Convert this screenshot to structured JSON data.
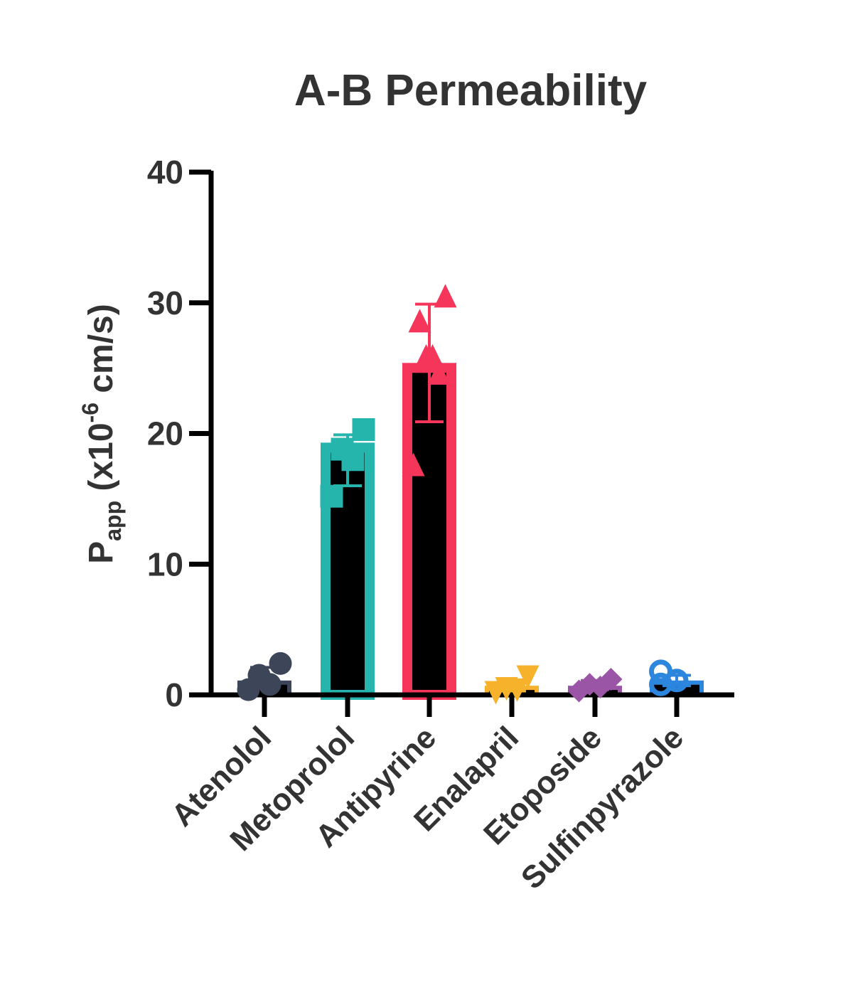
{
  "chart_data": {
    "type": "bar",
    "title": "A-B Permeability",
    "xlabel": "",
    "ylabel": "Papp (x10-6 cm/s)",
    "ylabel_parts": {
      "main": "P",
      "sub": "app",
      "rest_open": " (x10",
      "sup": "-6",
      "rest_close": " cm/s)"
    },
    "ylim": [
      0,
      40
    ],
    "yticks": [
      0,
      10,
      20,
      30,
      40
    ],
    "ytick_labels": [
      "0",
      "10",
      "20",
      "30",
      "40"
    ],
    "grid": false,
    "legend": null,
    "categories": [
      "Atenolol",
      "Metoprolol",
      "Antipyrine",
      "Enalapril",
      "Etoposide",
      "Sulfinpyrazole"
    ],
    "values": [
      1.1,
      19.3,
      25.4,
      0.7,
      0.7,
      1.1
    ],
    "error_upper": [
      2.1,
      19.9,
      29.9,
      1.0,
      1.1,
      1.5
    ],
    "error_lower": [
      0.5,
      16.0,
      20.9,
      0.3,
      0.4,
      0.7
    ],
    "colors": [
      "#3d4659",
      "#26b5ad",
      "#f5355a",
      "#f7b22b",
      "#9b55a6",
      "#2d86de"
    ],
    "markers": [
      "circle",
      "square",
      "triangle-up",
      "triangle-down",
      "diamond",
      "circle-open"
    ],
    "points": [
      [
        0.4,
        0.8,
        1.5,
        2.4
      ],
      [
        15.2,
        18.0,
        18.8,
        20.3
      ],
      [
        17.5,
        24.5,
        25.8,
        25.8,
        28.5,
        30.4
      ],
      [
        0.3,
        0.5,
        0.6,
        1.5
      ],
      [
        0.3,
        0.6,
        0.8,
        1.2
      ],
      [
        0.8,
        1.1,
        1.8
      ]
    ]
  }
}
